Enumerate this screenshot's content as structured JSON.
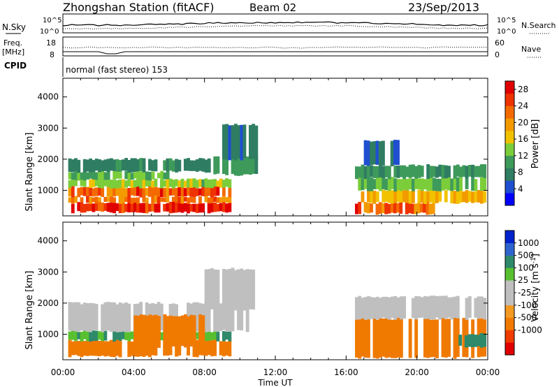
{
  "header": {
    "station": "Zhongshan Station (fitACF)",
    "beam": "Beam 02",
    "date": "23/Sep/2013"
  },
  "strip_labels": {
    "nsky": "N.Sky",
    "nsky_ticks": [
      "10^5",
      "10^0"
    ],
    "nsearch": "N.Search",
    "nsearch_ticks": [
      "10^5",
      "10^0"
    ],
    "freq": "Freq.",
    "freq_unit": "[MHz]",
    "freq_ticks": [
      "18",
      "8"
    ],
    "nave": "Nave",
    "nave_ticks": [
      "60",
      "0"
    ],
    "cpid": "CPID",
    "cpid_text": "normal (fast stereo) 153"
  },
  "colors": {
    "power_scale": [
      "#0000ff",
      "#1f4fd0",
      "#2f7d62",
      "#3e9a5b",
      "#7ccd3a",
      "#f2c200",
      "#f39a00",
      "#f46a00",
      "#ee3300",
      "#e00000"
    ],
    "velocity_scale": [
      "#e00000",
      "#f03c00",
      "#f07a00",
      "#f39a22",
      "#bfbfbf",
      "#bfbfbf",
      "#58c030",
      "#2e8a6a",
      "#2f64d0",
      "#0022cc"
    ],
    "ground_scatter": "#bdbdbd"
  },
  "chart_data": [
    {
      "type": "heatmap",
      "title": "",
      "xlabel": "Time UT",
      "ylabel": "Slant Range [km]",
      "xlim": [
        "00:00",
        "24:00"
      ],
      "ylim": [
        180,
        4600
      ],
      "x_ticks": [
        "00:00",
        "04:00",
        "08:00",
        "12:00",
        "16:00",
        "20:00",
        "00:00"
      ],
      "y_ticks": [
        1000,
        2000,
        3000,
        4000
      ],
      "colorbar": {
        "label": "Power [dB]",
        "ticks": [
          4,
          8,
          12,
          16,
          20,
          24,
          28
        ],
        "range": [
          0,
          30
        ]
      },
      "regions": [
        {
          "t": [
            0.3,
            9.5
          ],
          "r": [
            300,
            600
          ],
          "value": 27
        },
        {
          "t": [
            0.3,
            9.5
          ],
          "r": [
            600,
            800
          ],
          "value": 22
        },
        {
          "t": [
            0.3,
            9.5
          ],
          "r": [
            800,
            1100
          ],
          "value": 24
        },
        {
          "t": [
            0.3,
            9.5
          ],
          "r": [
            1100,
            1350
          ],
          "value": 14
        },
        {
          "t": [
            0.3,
            6.0
          ],
          "r": [
            1350,
            1600
          ],
          "value": 12
        },
        {
          "t": [
            0.3,
            8.5
          ],
          "r": [
            1600,
            2000
          ],
          "value": 8
        },
        {
          "t": [
            8.5,
            11.0
          ],
          "r": [
            1500,
            2100
          ],
          "value": 10
        },
        {
          "t": [
            9.0,
            11.0
          ],
          "r": [
            2000,
            3100
          ],
          "value": 6
        },
        {
          "t": [
            16.5,
            21.0
          ],
          "r": [
            250,
            600
          ],
          "value": 24
        },
        {
          "t": [
            16.5,
            23.9
          ],
          "r": [
            600,
            1000
          ],
          "value": 18
        },
        {
          "t": [
            16.5,
            23.9
          ],
          "r": [
            1000,
            1400
          ],
          "value": 12
        },
        {
          "t": [
            16.5,
            23.9
          ],
          "r": [
            1400,
            1800
          ],
          "value": 9
        },
        {
          "t": [
            17.0,
            19.0
          ],
          "r": [
            1800,
            2600
          ],
          "value": 6
        }
      ]
    },
    {
      "type": "heatmap",
      "title": "",
      "xlabel": "Time UT",
      "ylabel": "Slant Range [km]",
      "xlim": [
        "00:00",
        "24:00"
      ],
      "ylim": [
        180,
        4600
      ],
      "x_ticks": [
        "00:00",
        "04:00",
        "08:00",
        "12:00",
        "16:00",
        "20:00",
        "00:00"
      ],
      "y_ticks": [
        1000,
        2000,
        3000,
        4000
      ],
      "colorbar": {
        "label": "Velocity [m s^-1]",
        "ticks": [
          1000,
          500,
          100,
          25,
          -25,
          -100,
          -500,
          -1000
        ]
      },
      "regions": [
        {
          "t": [
            0.3,
            9.5
          ],
          "r": [
            300,
            800
          ],
          "value": -150
        },
        {
          "t": [
            0.3,
            9.5
          ],
          "r": [
            800,
            1100
          ],
          "value": 100
        },
        {
          "t": [
            0.3,
            10.5
          ],
          "r": [
            1100,
            2000
          ],
          "value": 0
        },
        {
          "t": [
            4.0,
            8.0
          ],
          "r": [
            600,
            1600
          ],
          "value": -400
        },
        {
          "t": [
            8.0,
            11.0
          ],
          "r": [
            1800,
            3100
          ],
          "value": 0
        },
        {
          "t": [
            16.5,
            23.9
          ],
          "r": [
            250,
            1500
          ],
          "value": -300
        },
        {
          "t": [
            22.0,
            23.9
          ],
          "r": [
            600,
            1000
          ],
          "value": 150
        },
        {
          "t": [
            16.5,
            23.9
          ],
          "r": [
            1500,
            2200
          ],
          "value": 0
        }
      ]
    }
  ]
}
